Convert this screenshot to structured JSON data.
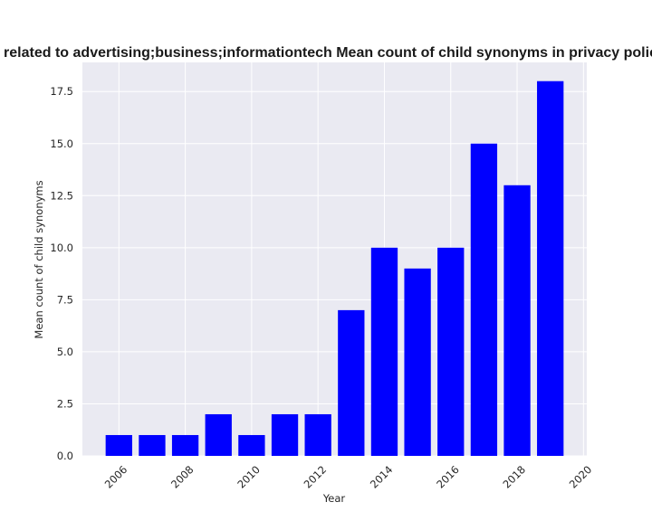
{
  "chart_data": {
    "type": "bar",
    "title": "Mean count of child synonyms in privacy policies that are related to advertising;business;informationtech Mean count of child synonyms in privacy policies that are related to advertising;business;informationtech",
    "xlabel": "Year",
    "ylabel": "Mean count of child synonyms",
    "categories": [
      2006,
      2007,
      2008,
      2009,
      2010,
      2011,
      2012,
      2013,
      2014,
      2015,
      2016,
      2017,
      2018,
      2019
    ],
    "values": [
      1,
      1,
      1,
      2,
      1,
      2,
      2,
      7,
      10,
      9,
      10,
      15,
      13,
      18
    ],
    "xlim": [
      2004.9,
      2020.1
    ],
    "ylim": [
      0,
      18.9
    ],
    "xticks": [
      2006,
      2008,
      2010,
      2012,
      2014,
      2016,
      2018,
      2020
    ],
    "yticks": [
      0,
      2.5,
      5,
      7.5,
      10,
      12.5,
      15,
      17.5
    ],
    "ytick_labels": [
      "0.0",
      "2.5",
      "5.0",
      "7.5",
      "10.0",
      "12.5",
      "15.0",
      "17.5"
    ],
    "grid": true,
    "bar_color": "#0000ff",
    "background_color": "#eaeaf2",
    "grid_color": "#ffffff"
  }
}
